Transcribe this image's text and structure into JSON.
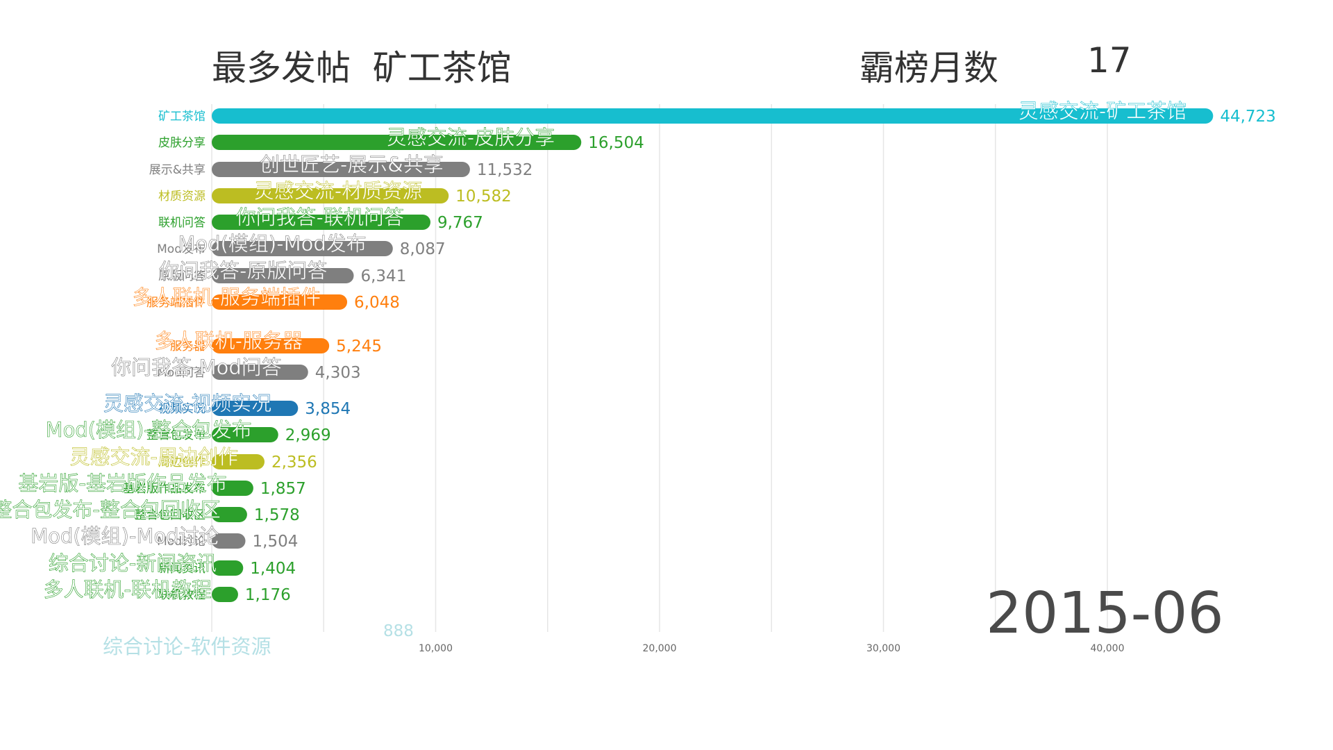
{
  "header": {
    "title_left": "最多发帖  矿工茶馆",
    "title_right": "霸榜月数",
    "title_count": "17"
  },
  "date": "2015-06",
  "ghost": {
    "label": "综合讨论-软件资源",
    "value": "888"
  },
  "chart_data": {
    "type": "bar",
    "orientation": "horizontal",
    "xlim": [
      0,
      46000
    ],
    "x_ticks": [
      {
        "value": 10000,
        "label": "10,000"
      },
      {
        "value": 20000,
        "label": "20,000"
      },
      {
        "value": 30000,
        "label": "30,000"
      },
      {
        "value": 40000,
        "label": "40,000"
      }
    ],
    "grid": true,
    "bars": [
      {
        "category": "矿工茶馆",
        "label": "灵感交流-矿工茶馆",
        "value": 44723,
        "value_label": "44,723",
        "color": "#17becf"
      },
      {
        "category": "皮肤分享",
        "label": "灵感交流-皮肤分享",
        "value": 16504,
        "value_label": "16,504",
        "color": "#2ca02c"
      },
      {
        "category": "展示&共享",
        "label": "创世匠艺-展示&共享",
        "value": 11532,
        "value_label": "11,532",
        "color": "#7f7f7f"
      },
      {
        "category": "材质资源",
        "label": "灵感交流-材质资源",
        "value": 10582,
        "value_label": "10,582",
        "color": "#bcbd22"
      },
      {
        "category": "联机问答",
        "label": "你问我答-联机问答",
        "value": 9767,
        "value_label": "9,767",
        "color": "#2ca02c"
      },
      {
        "category": "Mod发布",
        "label": "Mod(模组)-Mod发布",
        "value": 8087,
        "value_label": "8,087",
        "color": "#7f7f7f"
      },
      {
        "category": "原版问答",
        "label": "你问我答-原版问答",
        "value": 6341,
        "value_label": "6,341",
        "color": "#7f7f7f"
      },
      {
        "category": "服务端插件",
        "label": "多人联机-服务端插件",
        "value": 6048,
        "value_label": "6,048",
        "color": "#ff7f0e"
      },
      {
        "category": "服务器",
        "label": "多人联机-服务器",
        "value": 5245,
        "value_label": "5,245",
        "color": "#ff7f0e"
      },
      {
        "category": "Mod问答",
        "label": "你问我答-Mod问答",
        "value": 4303,
        "value_label": "4,303",
        "color": "#7f7f7f"
      },
      {
        "category": "视频实况",
        "label": "灵感交流-视频实况",
        "value": 3854,
        "value_label": "3,854",
        "color": "#1f77b4"
      },
      {
        "category": "整合包发布",
        "label": "Mod(模组)-整合包发布",
        "value": 2969,
        "value_label": "2,969",
        "color": "#2ca02c"
      },
      {
        "category": "周边创作",
        "label": "灵感交流-周边创作",
        "value": 2356,
        "value_label": "2,356",
        "color": "#bcbd22"
      },
      {
        "category": "基岩版作品发布",
        "label": "基岩版-基岩版作品发布",
        "value": 1857,
        "value_label": "1,857",
        "color": "#2ca02c"
      },
      {
        "category": "整合包回收区",
        "label": "Mod(模组)-整合包发布-整合包回收区",
        "value": 1578,
        "value_label": "1,578",
        "color": "#2ca02c"
      },
      {
        "category": "Mod讨论",
        "label": "Mod(模组)-Mod讨论",
        "value": 1504,
        "value_label": "1,504",
        "color": "#7f7f7f"
      },
      {
        "category": "新闻资讯",
        "label": "综合讨论-新闻资讯",
        "value": 1404,
        "value_label": "1,404",
        "color": "#2ca02c"
      },
      {
        "category": "联机教程",
        "label": "多人联机-联机教程",
        "value": 1176,
        "value_label": "1,176",
        "color": "#2ca02c"
      }
    ]
  }
}
